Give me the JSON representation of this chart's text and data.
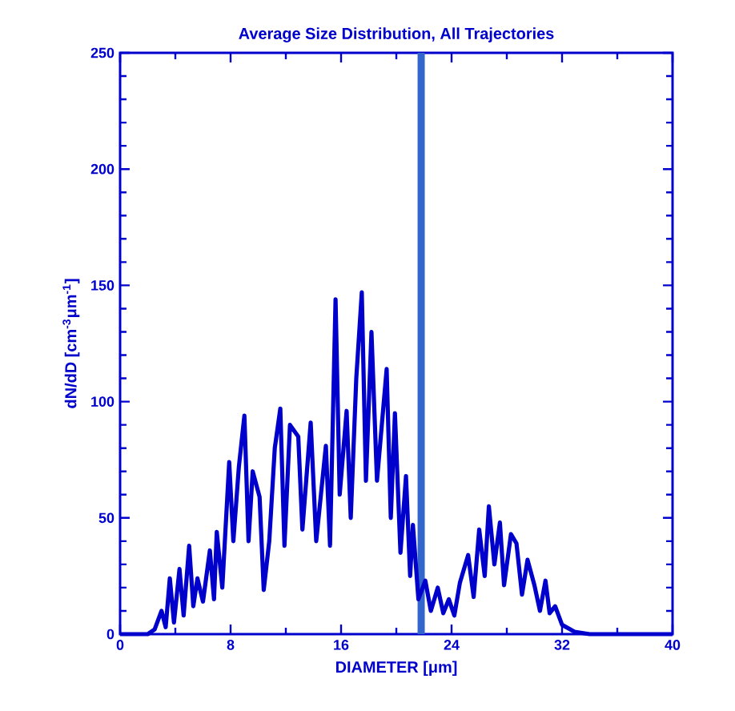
{
  "chart_data": {
    "type": "line",
    "title": "Average Size Distribution, All Trajectories",
    "xlabel": "DIAMETER [μm]",
    "ylabel": "dN/dD [cm$^{-3}$μm$^{-1}$]",
    "xlim": [
      0,
      40
    ],
    "ylim": [
      0,
      250
    ],
    "xticks": [
      0,
      8,
      16,
      24,
      32,
      40
    ],
    "yticks": [
      0,
      50,
      100,
      150,
      200,
      250
    ],
    "grid": false,
    "marker": "none",
    "line_style": "solid",
    "series": [
      {
        "color": "#0000cc",
        "x": [
          0,
          2,
          2.5,
          3,
          3.3,
          3.6,
          3.9,
          4.3,
          4.6,
          5.0,
          5.3,
          5.6,
          6.0,
          6.5,
          6.8,
          7.0,
          7.4,
          7.9,
          8.2,
          8.6,
          9.0,
          9.3,
          9.6,
          10.1,
          10.4,
          10.8,
          11.2,
          11.6,
          11.9,
          12.3,
          12.9,
          13.2,
          13.8,
          14.2,
          14.9,
          15.2,
          15.6,
          15.9,
          16.4,
          16.7,
          17.1,
          17.5,
          17.8,
          18.2,
          18.6,
          19.3,
          19.6,
          19.9,
          20.3,
          20.7,
          21.0,
          21.2,
          21.6,
          22.1,
          22.5,
          23.0,
          23.4,
          23.8,
          24.2,
          24.6,
          25.2,
          25.6,
          26.0,
          26.4,
          26.7,
          27.1,
          27.5,
          27.8,
          28.3,
          28.7,
          29.1,
          29.5,
          30.0,
          30.4,
          30.8,
          31.1,
          31.5,
          32.0,
          32.9,
          34,
          40
        ],
        "values": [
          0,
          0,
          2,
          10,
          3,
          24,
          5,
          28,
          8,
          38,
          12,
          24,
          14,
          36,
          15,
          44,
          20,
          74,
          40,
          72,
          94,
          40,
          70,
          59,
          19,
          40,
          80,
          97,
          38,
          90,
          85,
          45,
          91,
          40,
          81,
          38,
          144,
          60,
          96,
          50,
          110,
          147,
          66,
          130,
          66,
          114,
          50,
          95,
          35,
          68,
          25,
          47,
          15,
          23,
          10,
          20,
          9,
          15,
          8,
          22,
          34,
          16,
          45,
          25,
          55,
          30,
          48,
          21,
          43,
          39,
          17,
          32,
          21,
          10,
          23,
          9,
          12,
          4,
          1,
          0,
          0
        ]
      }
    ],
    "ref_lines": [
      {
        "axis": "x",
        "value": 21.8,
        "color": "#3366cc",
        "line_style": "solid"
      }
    ]
  }
}
